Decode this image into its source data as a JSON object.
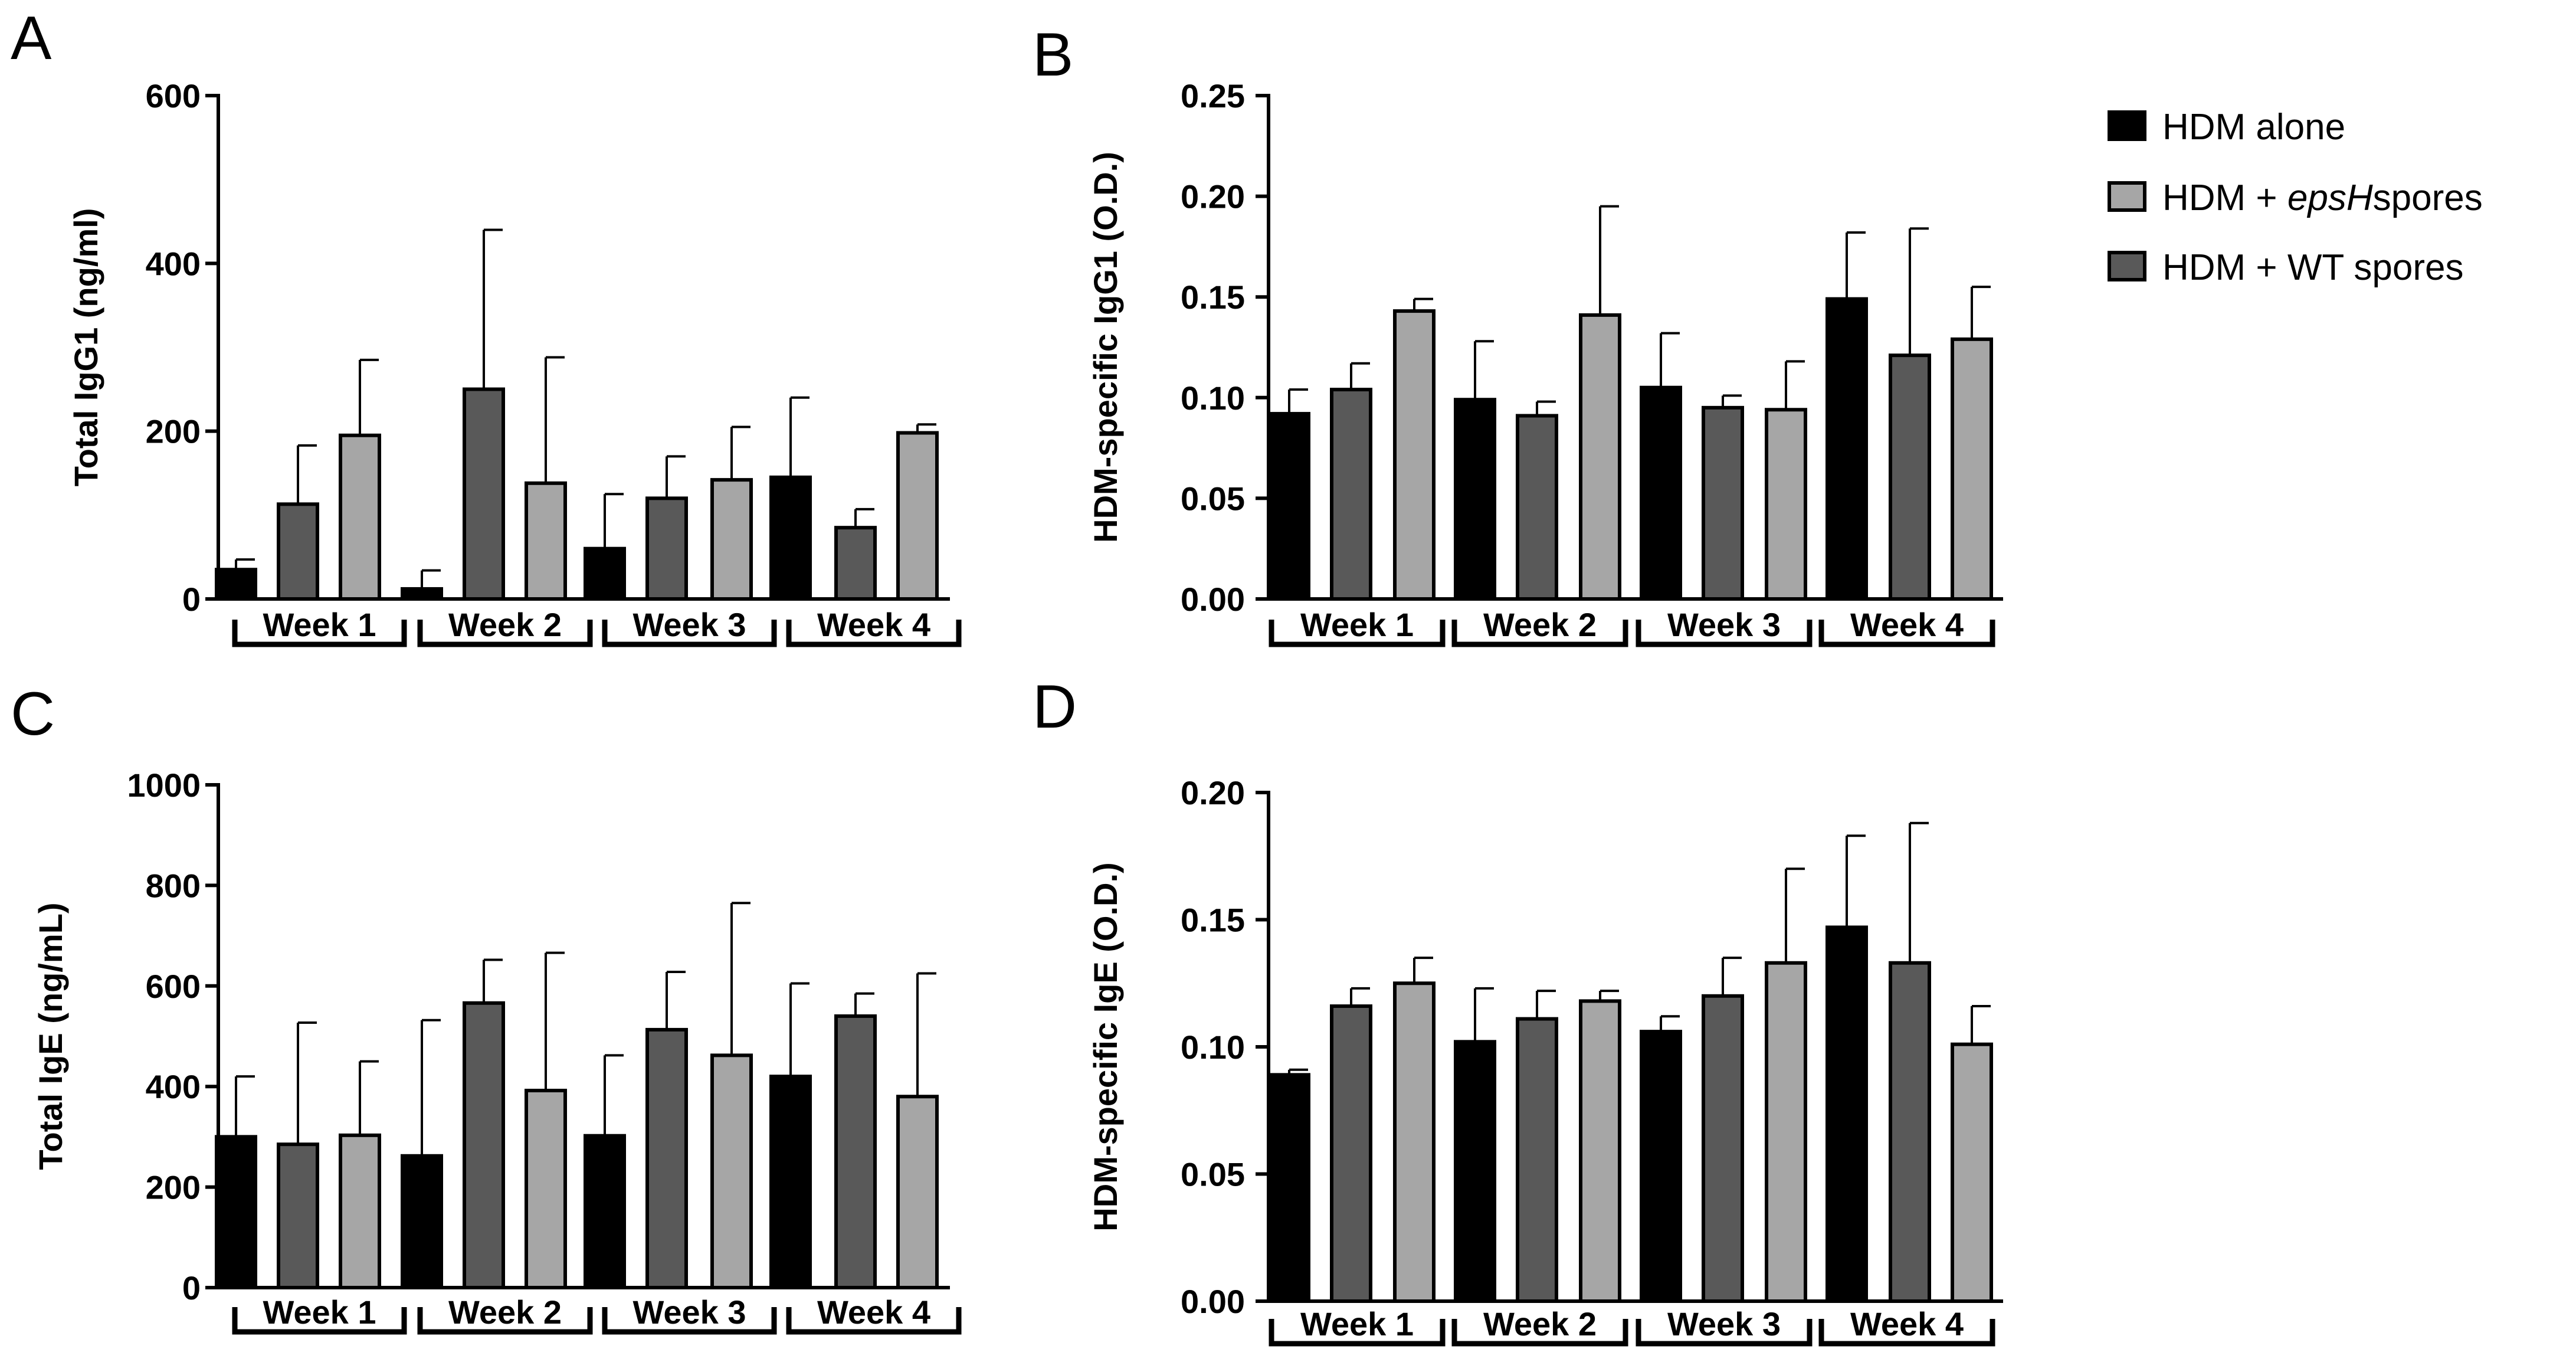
{
  "colors": {
    "hdm_alone": "#000000",
    "eps_h": "#a6a6a6",
    "wt": "#595959"
  },
  "legend": {
    "items": [
      {
        "key": "hdm_alone",
        "prefix": "HDM alone",
        "italic": "",
        "suffix": ""
      },
      {
        "key": "eps_h",
        "prefix": "HDM + ",
        "italic": "epsH",
        "suffix": "spores"
      },
      {
        "key": "wt",
        "prefix": "HDM + WT spores",
        "italic": "",
        "suffix": ""
      }
    ]
  },
  "chart_data": [
    {
      "panel": "A",
      "type": "bar",
      "ylabel": "Total  IgG1 (ng/ml)",
      "ylim": [
        0,
        600
      ],
      "yticks": [
        0,
        200,
        400,
        600
      ],
      "categories": [
        "Week 1",
        "Week 2",
        "Week 3",
        "Week 4"
      ],
      "bar_series": [
        {
          "key": "hdm_alone",
          "values": [
            35,
            12,
            60,
            145
          ],
          "errors": [
            12,
            22,
            65,
            95
          ]
        },
        {
          "key": "wt",
          "values": [
            113,
            250,
            120,
            85
          ],
          "errors": [
            70,
            190,
            50,
            22
          ]
        },
        {
          "key": "eps_h",
          "values": [
            195,
            138,
            142,
            198
          ],
          "errors": [
            90,
            150,
            63,
            10
          ]
        }
      ]
    },
    {
      "panel": "B",
      "type": "bar",
      "ylabel": "HDM-specific IgG1 (O.D.)",
      "ylim": [
        0,
        0.25
      ],
      "yticks": [
        "0.00",
        "0.05",
        "0.10",
        "0.15",
        "0.20",
        "0.25"
      ],
      "categories": [
        "Week 1",
        "Week 2",
        "Week 3",
        "Week 4"
      ],
      "bar_series": [
        {
          "key": "hdm_alone",
          "values": [
            0.092,
            0.099,
            0.105,
            0.149
          ],
          "errors": [
            0.012,
            0.029,
            0.027,
            0.033
          ]
        },
        {
          "key": "wt",
          "values": [
            0.104,
            0.091,
            0.095,
            0.121
          ],
          "errors": [
            0.013,
            0.007,
            0.006,
            0.063
          ]
        },
        {
          "key": "eps_h",
          "values": [
            0.143,
            0.141,
            0.094,
            0.129
          ],
          "errors": [
            0.006,
            0.054,
            0.024,
            0.026
          ]
        }
      ]
    },
    {
      "panel": "C",
      "type": "bar",
      "ylabel": "Total IgE (ng/mL)",
      "ylim": [
        0,
        1000
      ],
      "yticks": [
        0,
        200,
        400,
        600,
        800,
        1000
      ],
      "categories": [
        "Week 1",
        "Week 2",
        "Week 3",
        "Week 4"
      ],
      "bar_series": [
        {
          "key": "hdm_alone",
          "values": [
            300,
            262,
            302,
            420
          ],
          "errors": [
            120,
            270,
            160,
            185
          ]
        },
        {
          "key": "wt",
          "values": [
            285,
            566,
            513,
            540
          ],
          "errors": [
            242,
            86,
            115,
            45
          ]
        },
        {
          "key": "eps_h",
          "values": [
            303,
            392,
            462,
            380
          ],
          "errors": [
            147,
            274,
            303,
            245
          ]
        }
      ]
    },
    {
      "panel": "D",
      "type": "bar",
      "ylabel": "HDM-specific IgE (O.D.)",
      "ylim": [
        0,
        0.2
      ],
      "yticks": [
        "0.00",
        "0.05",
        "0.10",
        "0.15",
        "0.20"
      ],
      "categories": [
        "Week 1",
        "Week 2",
        "Week 3",
        "Week 4"
      ],
      "bar_series": [
        {
          "key": "hdm_alone",
          "values": [
            0.089,
            0.102,
            0.106,
            0.147
          ],
          "errors": [
            0.002,
            0.021,
            0.006,
            0.036
          ]
        },
        {
          "key": "wt",
          "values": [
            0.116,
            0.111,
            0.12,
            0.133
          ],
          "errors": [
            0.007,
            0.011,
            0.015,
            0.055
          ]
        },
        {
          "key": "eps_h",
          "values": [
            0.125,
            0.118,
            0.133,
            0.101
          ],
          "errors": [
            0.01,
            0.004,
            0.037,
            0.015
          ]
        }
      ]
    }
  ]
}
